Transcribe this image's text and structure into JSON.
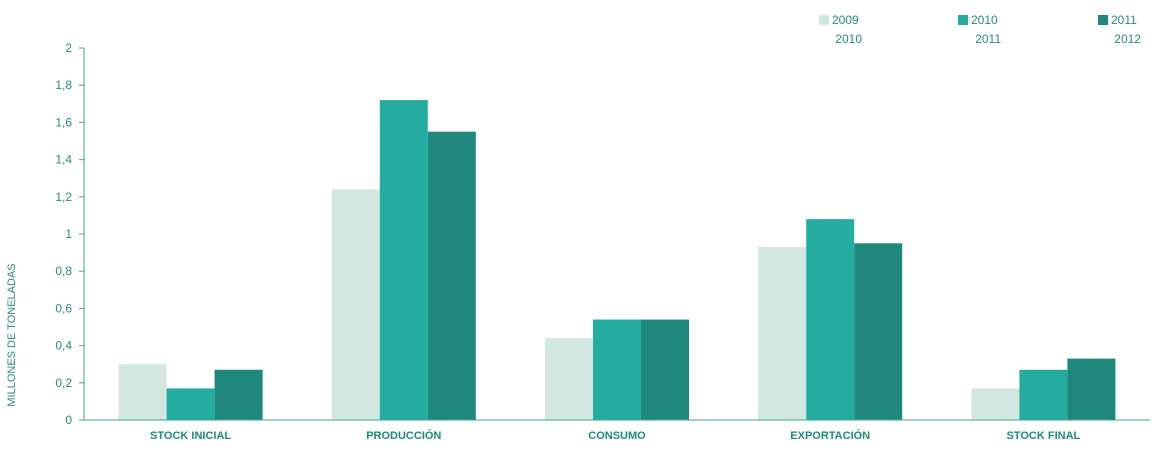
{
  "chart_data": {
    "type": "bar",
    "ylabel": "MILLONES DE TONELADAS",
    "xlabel": "",
    "ylim": [
      0,
      2
    ],
    "yticks": [
      "0",
      "0,2",
      "0,4",
      "0,6",
      "0,8",
      "1",
      "1,2",
      "1,4",
      "1,6",
      "1,8",
      "2"
    ],
    "categories": [
      "STOCK INICIAL",
      "PRODUCCIÓN",
      "CONSUMO",
      "EXPORTACIÓN",
      "STOCK FINAL"
    ],
    "series": [
      {
        "line1": "2009",
        "line2": "2010",
        "color": "#d1e7df",
        "values": [
          0.3,
          1.24,
          0.44,
          0.93,
          0.17
        ]
      },
      {
        "line1": "2010",
        "line2": "2011",
        "color": "#25aca0",
        "values": [
          0.17,
          1.72,
          0.54,
          1.08,
          0.27
        ]
      },
      {
        "line1": "2011",
        "line2": "2012",
        "color": "#1f877b",
        "values": [
          0.27,
          1.55,
          0.54,
          0.95,
          0.33
        ]
      }
    ],
    "legend_position": "top-right",
    "grid": false
  }
}
